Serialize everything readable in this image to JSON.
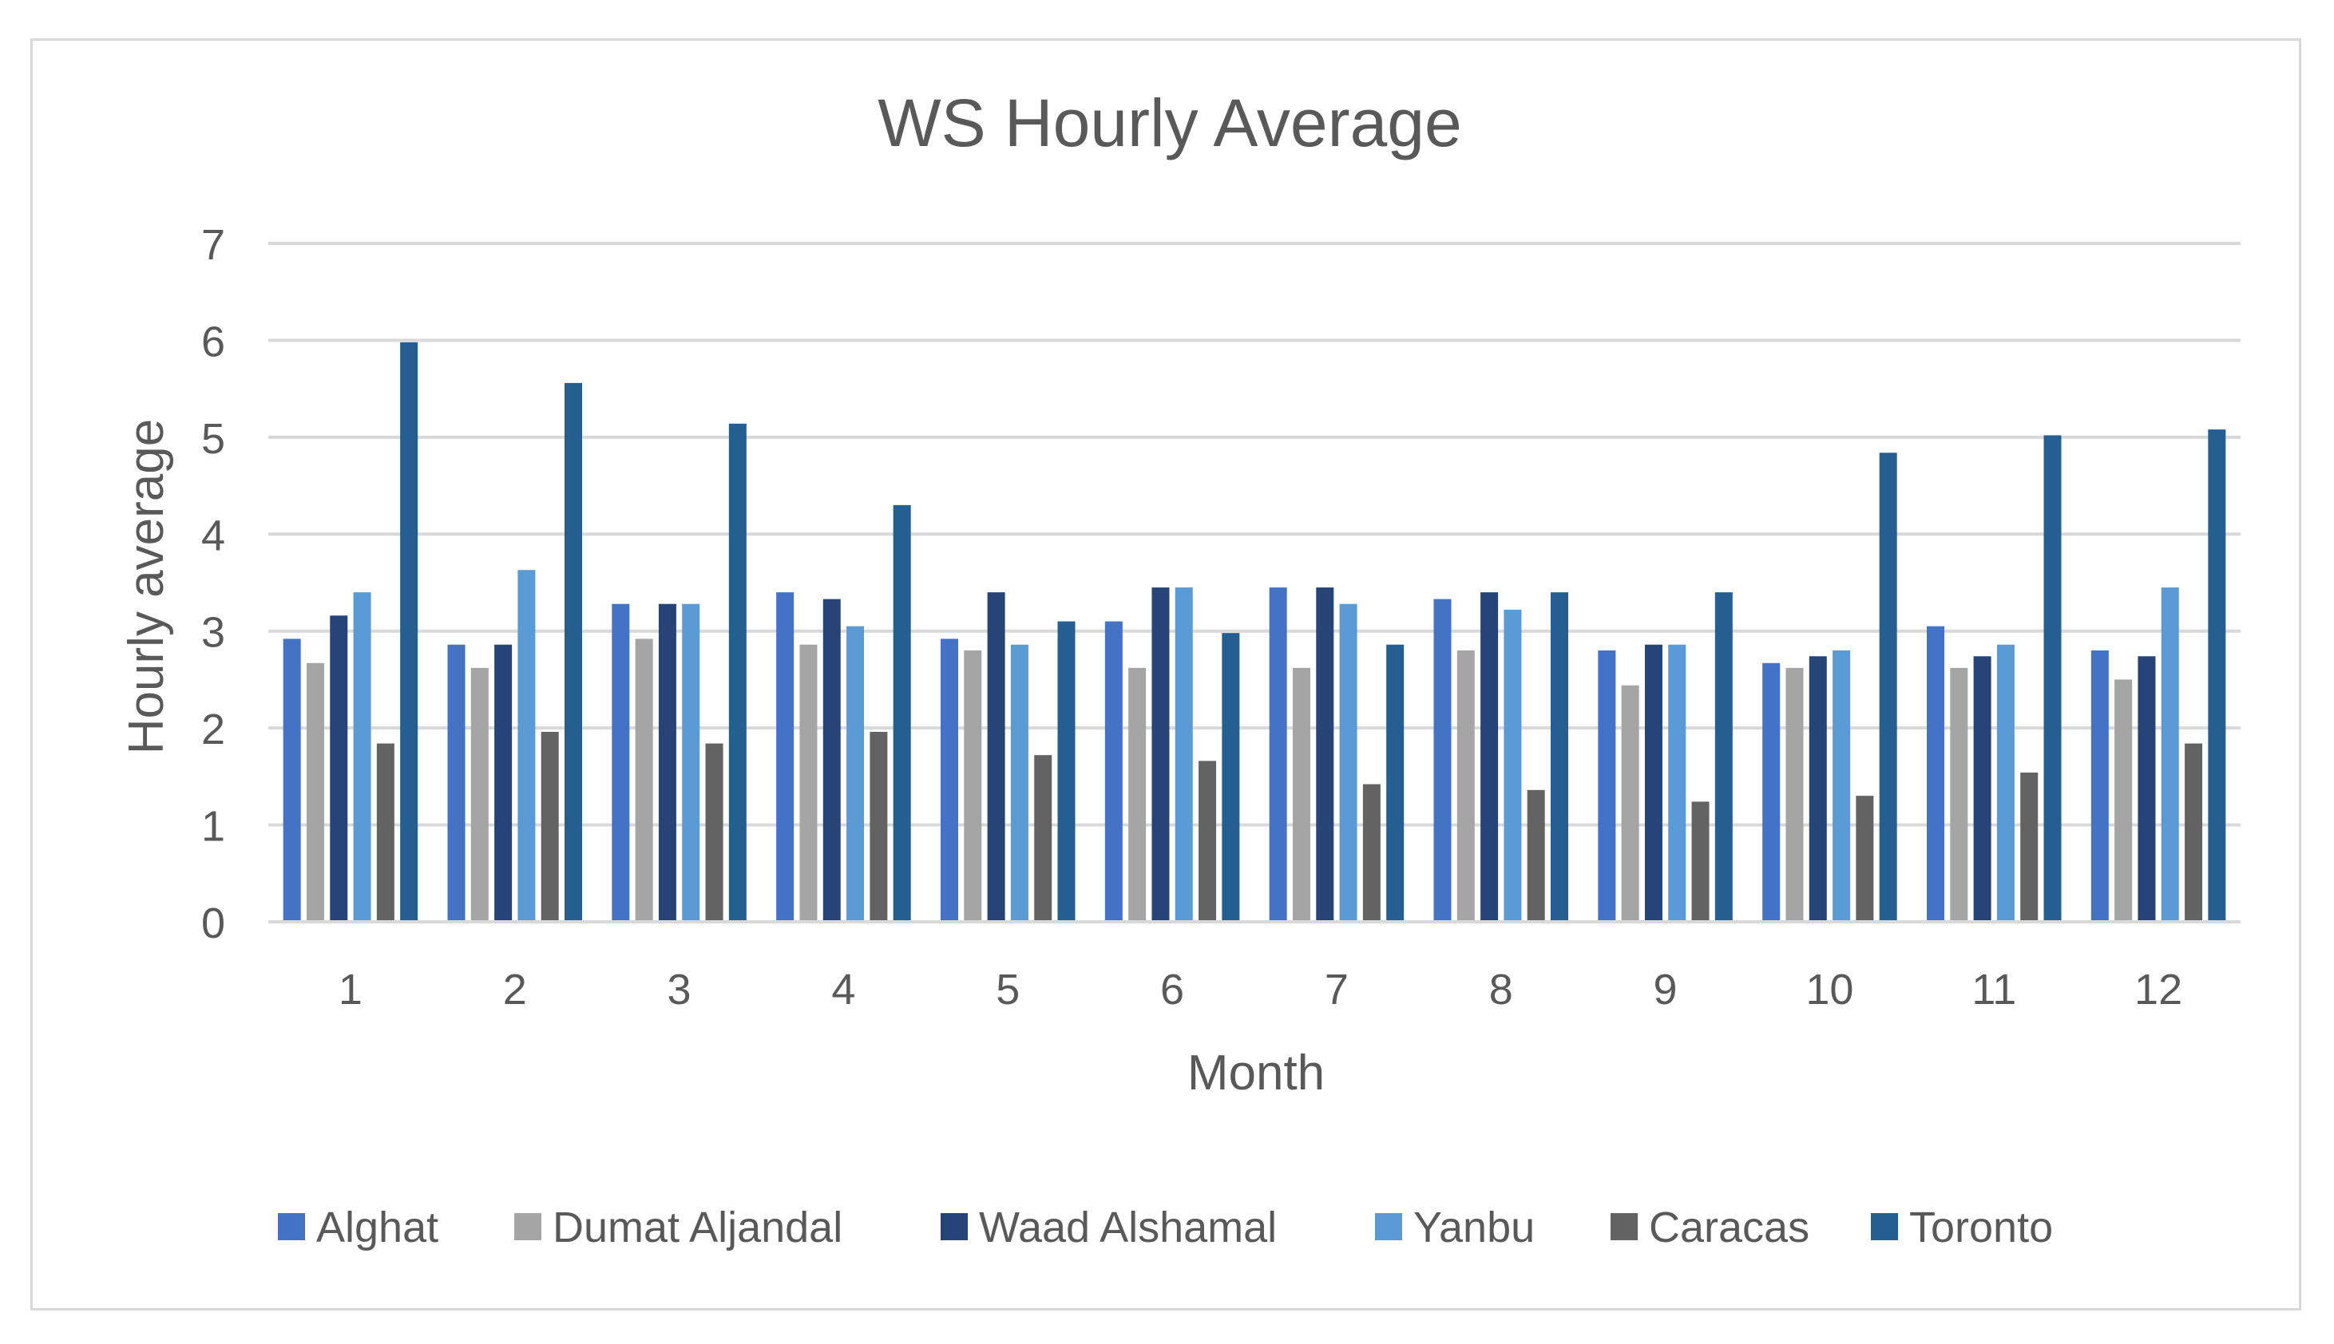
{
  "chart_data": {
    "type": "bar",
    "title": "WS Hourly Average",
    "xlabel": "Month",
    "ylabel": "Hourly average",
    "categories": [
      "1",
      "2",
      "3",
      "4",
      "5",
      "6",
      "7",
      "8",
      "9",
      "10",
      "11",
      "12"
    ],
    "ylim": [
      0,
      7
    ],
    "yticks": [
      "0",
      "1",
      "2",
      "3",
      "4",
      "5",
      "6",
      "7"
    ],
    "grid": true,
    "legend_position": "bottom",
    "series": [
      {
        "name": "Alghat",
        "color": "#4472C4",
        "values": [
          2.92,
          2.86,
          3.28,
          3.4,
          2.92,
          3.1,
          3.45,
          3.33,
          2.8,
          2.67,
          3.05,
          2.8
        ]
      },
      {
        "name": "Dumat Aljandal",
        "color": "#A5A5A5",
        "values": [
          2.67,
          2.62,
          2.92,
          2.86,
          2.8,
          2.62,
          2.62,
          2.8,
          2.44,
          2.62,
          2.62,
          2.5
        ]
      },
      {
        "name": "Waad Alshamal",
        "color": "#264478",
        "values": [
          3.16,
          2.86,
          3.28,
          3.33,
          3.4,
          3.45,
          3.45,
          3.4,
          2.86,
          2.74,
          2.74,
          2.74
        ]
      },
      {
        "name": "Yanbu",
        "color": "#5B9BD5",
        "values": [
          3.4,
          3.63,
          3.28,
          3.05,
          2.86,
          3.45,
          3.28,
          3.22,
          2.86,
          2.8,
          2.86,
          3.45
        ]
      },
      {
        "name": "Caracas",
        "color": "#636363",
        "values": [
          1.84,
          1.96,
          1.84,
          1.96,
          1.72,
          1.66,
          1.42,
          1.36,
          1.24,
          1.3,
          1.54,
          1.84
        ]
      },
      {
        "name": "Toronto",
        "color": "#255E91",
        "values": [
          5.98,
          5.56,
          5.14,
          4.3,
          3.1,
          2.98,
          2.86,
          3.4,
          3.4,
          4.84,
          5.02,
          5.08
        ]
      }
    ]
  }
}
